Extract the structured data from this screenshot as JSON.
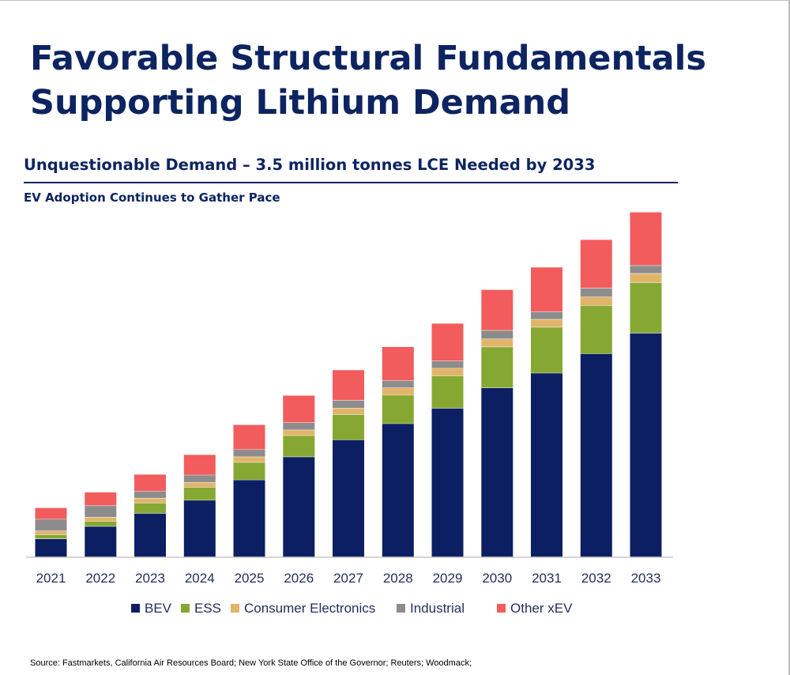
{
  "page": {
    "title_line1": "Favorable Structural Fundamentals",
    "title_line2": "Supporting Lithium Demand",
    "subtitle": "Unquestionable Demand – 3.5 million tonnes LCE Needed by 2033",
    "subheading": "EV Adoption Continues to Gather Pace",
    "source": "Source: Fastmarkets, California Air Resources Board; New York State Office of the Governor; Reuters; Woodmack;"
  },
  "colors": {
    "title": "#0d2461",
    "axis": "#c8c8c8"
  },
  "chart_data": {
    "type": "bar",
    "stacked": true,
    "grid": false,
    "legend_position": "bottom",
    "ylim": [
      0,
      100
    ],
    "categories": [
      "2021",
      "2022",
      "2023",
      "2024",
      "2025",
      "2026",
      "2027",
      "2028",
      "2029",
      "2030",
      "2031",
      "2032",
      "2033"
    ],
    "series": [
      {
        "name": "BEV",
        "color": "#0d1f63",
        "values": [
          5.4,
          9.0,
          12.8,
          16.6,
          22.5,
          29.2,
          34.1,
          38.8,
          43.3,
          49.2,
          53.5,
          59.1,
          65.1
        ]
      },
      {
        "name": "ESS",
        "color": "#86a832",
        "values": [
          1.2,
          1.5,
          3.0,
          3.8,
          5.1,
          6.2,
          7.4,
          8.3,
          9.4,
          11.9,
          13.3,
          14.0,
          14.7
        ]
      },
      {
        "name": "Consumer Electronics",
        "color": "#e2b46a",
        "values": [
          1.1,
          1.2,
          1.4,
          1.4,
          1.6,
          1.6,
          1.8,
          2.1,
          2.2,
          2.3,
          2.3,
          2.5,
          2.6
        ]
      },
      {
        "name": "Industrial",
        "color": "#8c8c8c",
        "values": [
          3.4,
          3.3,
          2.0,
          2.1,
          2.1,
          2.1,
          2.3,
          2.1,
          2.1,
          2.5,
          2.2,
          2.5,
          2.3
        ]
      },
      {
        "name": "Other xEV",
        "color": "#f25c5c",
        "values": [
          3.2,
          3.8,
          4.8,
          5.8,
          7.1,
          7.8,
          8.7,
          9.7,
          10.8,
          11.7,
          12.8,
          14.0,
          15.4
        ]
      }
    ]
  }
}
